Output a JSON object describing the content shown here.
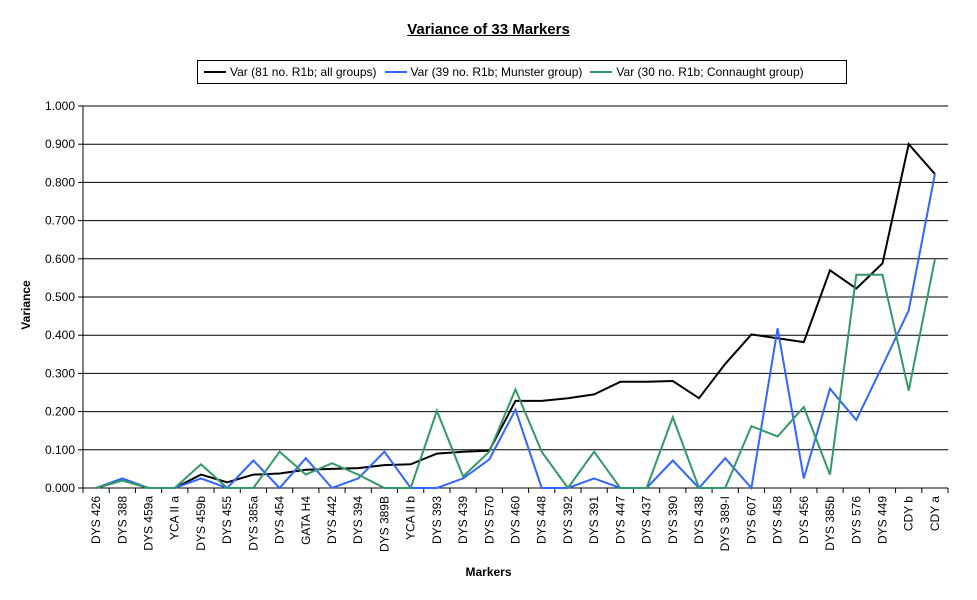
{
  "chart_data": {
    "type": "line",
    "title": "Variance of 33 Markers",
    "xlabel": "Markers",
    "ylabel": "Variance",
    "ylim": [
      0,
      1.0
    ],
    "yticks": [
      "0.000",
      "0.100",
      "0.200",
      "0.300",
      "0.400",
      "0.500",
      "0.600",
      "0.700",
      "0.800",
      "0.900",
      "1.000"
    ],
    "grid": "horizontal",
    "legend_position": "top",
    "categories": [
      "DYS 426",
      "DYS 388",
      "DYS 459a",
      "YCA II a",
      "DYS 459b",
      "DYS 455",
      "DYS 385a",
      "DYS 454",
      "GATA H4",
      "DYS 442",
      "DYS 394",
      "DYS 389B",
      "YCA II b",
      "DYS 393",
      "DYS 439",
      "DYS 570",
      "DYS 460",
      "DYS 448",
      "DYS 392",
      "DYS 391",
      "DYS 447",
      "DYS 437",
      "DYS 390",
      "DYS 438",
      "DYS 389-I",
      "DYS 607",
      "DYS 458",
      "DYS 456",
      "DYS 385b",
      "DYS 576",
      "DYS 449",
      "CDY b",
      "CDY a"
    ],
    "series": [
      {
        "name": "Var (81 no. R1b; all groups)",
        "color": "#000000",
        "values": [
          0.0,
          0.02,
          0.0,
          0.0,
          0.035,
          0.015,
          0.035,
          0.038,
          0.048,
          0.05,
          0.052,
          0.06,
          0.062,
          0.09,
          0.095,
          0.098,
          0.228,
          0.228,
          0.235,
          0.245,
          0.278,
          0.278,
          0.28,
          0.235,
          0.325,
          0.402,
          0.392,
          0.382,
          0.57,
          0.522,
          0.588,
          0.9,
          0.822
        ]
      },
      {
        "name": "Var (39 no. R1b; Munster group)",
        "color": "#3366ff",
        "values": [
          0.0,
          0.025,
          0.0,
          0.0,
          0.025,
          0.0,
          0.072,
          0.0,
          0.078,
          0.0,
          0.025,
          0.095,
          0.0,
          0.0,
          0.025,
          0.075,
          0.205,
          0.0,
          0.0,
          0.025,
          0.0,
          0.0,
          0.072,
          0.0,
          0.078,
          0.0,
          0.418,
          0.025,
          0.26,
          0.178,
          0.32,
          0.465,
          0.822
        ]
      },
      {
        "name": "Var (30 no. R1b; Connaught group)",
        "color": "#339966",
        "values": [
          0.0,
          0.02,
          0.0,
          0.0,
          0.062,
          0.0,
          0.0,
          0.095,
          0.035,
          0.065,
          0.035,
          0.0,
          0.0,
          0.202,
          0.03,
          0.095,
          0.258,
          0.095,
          0.0,
          0.095,
          0.0,
          0.0,
          0.185,
          0.0,
          0.0,
          0.162,
          0.135,
          0.212,
          0.035,
          0.558,
          0.558,
          0.255,
          0.598
        ]
      }
    ]
  },
  "title": "Variance of 33 Markers",
  "legend": {
    "items": [
      {
        "label": "Var (81 no. R1b; all groups)",
        "color": "#000000"
      },
      {
        "label": "Var (39 no. R1b; Munster group)",
        "color": "#3366ff"
      },
      {
        "label": "Var (30 no. R1b; Connaught group)",
        "color": "#339966"
      }
    ]
  },
  "axes": {
    "x_title": "Markers",
    "y_title": "Variance"
  }
}
